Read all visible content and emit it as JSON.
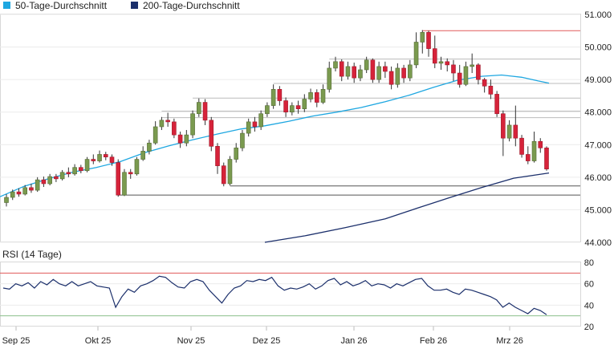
{
  "legend": [
    {
      "label": "50-Tage-Durchschnitt",
      "color": "#1ea7e1"
    },
    {
      "label": "200-Tage-Durchschnitt",
      "color": "#1b2f6b"
    }
  ],
  "colors": {
    "up": "#7a9a4f",
    "down": "#d6233a",
    "ma50": "#1ea7e1",
    "ma200": "#1b2f6b",
    "rsi": "#1b2f6b",
    "rsi_upper": "#e05a5a",
    "rsi_lower": "#8cc08c",
    "wick": "#333333"
  },
  "chart_data": [
    {
      "type": "candlestick",
      "ylim": [
        44.0,
        51.0
      ],
      "y_ticks": [
        "44.000",
        "45.000",
        "46.000",
        "47.000",
        "48.000",
        "49.000",
        "50.000",
        "51.000"
      ],
      "x_ticks": [
        "Sep 25",
        "Okt 25",
        "Nov 25",
        "Dez 25",
        "Jan 26",
        "Feb 26",
        "Mrz 26"
      ],
      "series": [
        {
          "name": "50-Tage-Durchschnitt",
          "values": [
            [
              0,
              45.4
            ],
            [
              30,
              45.72
            ],
            [
              60,
              45.95
            ],
            [
              90,
              46.15
            ],
            [
              120,
              46.3
            ],
            [
              150,
              46.48
            ],
            [
              180,
              46.75
            ],
            [
              210,
              46.96
            ],
            [
              240,
              47.15
            ],
            [
              270,
              47.32
            ],
            [
              300,
              47.48
            ],
            [
              330,
              47.58
            ],
            [
              360,
              47.72
            ],
            [
              390,
              47.88
            ],
            [
              420,
              48.0
            ],
            [
              450,
              48.14
            ],
            [
              480,
              48.32
            ],
            [
              510,
              48.52
            ],
            [
              540,
              48.76
            ],
            [
              570,
              48.98
            ],
            [
              600,
              49.1
            ],
            [
              625,
              49.14
            ],
            [
              650,
              49.07
            ],
            [
              670,
              48.96
            ],
            [
              684,
              48.89
            ]
          ]
        },
        {
          "name": "200-Tage-Durchschnitt",
          "values": [
            [
              330,
              44.0
            ],
            [
              380,
              44.2
            ],
            [
              430,
              44.45
            ],
            [
              480,
              44.72
            ],
            [
              520,
              45.05
            ],
            [
              560,
              45.37
            ],
            [
              600,
              45.68
            ],
            [
              640,
              45.97
            ],
            [
              684,
              46.13
            ]
          ]
        }
      ],
      "candles": [
        [
          45.22,
          45.38,
          45.1,
          45.48
        ],
        [
          45.38,
          45.55,
          45.3,
          45.62
        ],
        [
          45.55,
          45.48,
          45.4,
          45.66
        ],
        [
          45.48,
          45.68,
          45.44,
          45.76
        ],
        [
          45.68,
          45.6,
          45.52,
          45.8
        ],
        [
          45.6,
          45.92,
          45.55,
          46.0
        ],
        [
          45.92,
          45.8,
          45.7,
          46.02
        ],
        [
          45.8,
          46.02,
          45.75,
          46.1
        ],
        [
          46.02,
          45.95,
          45.85,
          46.1
        ],
        [
          45.95,
          46.15,
          45.9,
          46.22
        ],
        [
          46.15,
          46.1,
          46.0,
          46.3
        ],
        [
          46.1,
          46.3,
          46.05,
          46.4
        ],
        [
          46.3,
          46.2,
          46.12,
          46.38
        ],
        [
          46.2,
          46.55,
          46.15,
          46.62
        ],
        [
          46.55,
          46.5,
          46.4,
          46.7
        ],
        [
          46.5,
          46.7,
          46.45,
          46.82
        ],
        [
          46.7,
          46.62,
          46.52,
          46.78
        ],
        [
          46.62,
          46.45,
          46.35,
          46.7
        ],
        [
          46.45,
          45.45,
          45.4,
          46.55
        ],
        [
          45.45,
          46.15,
          45.42,
          46.25
        ],
        [
          46.15,
          46.1,
          45.95,
          46.25
        ],
        [
          46.1,
          46.55,
          46.05,
          46.62
        ],
        [
          46.55,
          46.8,
          46.5,
          46.95
        ],
        [
          46.8,
          47.05,
          46.7,
          47.15
        ],
        [
          47.05,
          47.55,
          47.0,
          47.72
        ],
        [
          47.55,
          47.75,
          47.45,
          47.85
        ],
        [
          47.75,
          47.7,
          47.55,
          47.98
        ],
        [
          47.7,
          47.3,
          47.2,
          47.8
        ],
        [
          47.3,
          47.05,
          46.9,
          47.4
        ],
        [
          47.05,
          47.3,
          46.95,
          47.45
        ],
        [
          47.3,
          47.95,
          47.2,
          48.05
        ],
        [
          47.95,
          48.3,
          47.85,
          48.42
        ],
        [
          48.3,
          47.75,
          47.6,
          48.4
        ],
        [
          47.75,
          46.95,
          46.8,
          47.85
        ],
        [
          46.95,
          46.35,
          46.1,
          47.05
        ],
        [
          46.35,
          45.8,
          45.72,
          46.45
        ],
        [
          45.8,
          46.55,
          45.75,
          46.65
        ],
        [
          46.55,
          46.9,
          46.45,
          47.05
        ],
        [
          46.9,
          47.35,
          46.8,
          47.45
        ],
        [
          47.35,
          47.7,
          47.25,
          47.8
        ],
        [
          47.7,
          47.55,
          47.4,
          47.85
        ],
        [
          47.55,
          47.95,
          47.45,
          48.05
        ],
        [
          47.95,
          48.2,
          47.85,
          48.3
        ],
        [
          48.2,
          48.7,
          48.1,
          48.85
        ],
        [
          48.7,
          48.35,
          48.2,
          48.8
        ],
        [
          48.35,
          48.0,
          47.85,
          48.45
        ],
        [
          48.0,
          48.2,
          47.9,
          48.3
        ],
        [
          48.2,
          48.1,
          47.95,
          48.35
        ],
        [
          48.1,
          48.4,
          48.0,
          48.55
        ],
        [
          48.4,
          48.6,
          48.3,
          48.72
        ],
        [
          48.6,
          48.3,
          48.15,
          48.7
        ],
        [
          48.3,
          48.7,
          48.25,
          48.85
        ],
        [
          48.7,
          49.35,
          48.6,
          49.55
        ],
        [
          49.35,
          49.55,
          49.25,
          49.7
        ],
        [
          49.55,
          49.1,
          48.95,
          49.62
        ],
        [
          49.1,
          49.4,
          49.0,
          49.55
        ],
        [
          49.4,
          49.05,
          48.9,
          49.52
        ],
        [
          49.05,
          49.3,
          48.95,
          49.45
        ],
        [
          49.3,
          49.6,
          49.2,
          49.7
        ],
        [
          49.6,
          49.0,
          48.9,
          49.65
        ],
        [
          49.0,
          49.4,
          48.9,
          49.55
        ],
        [
          49.4,
          49.25,
          49.05,
          49.55
        ],
        [
          49.25,
          48.85,
          48.7,
          49.4
        ],
        [
          48.85,
          49.35,
          48.75,
          49.5
        ],
        [
          49.35,
          49.05,
          48.9,
          49.45
        ],
        [
          49.05,
          49.45,
          48.95,
          49.6
        ],
        [
          49.45,
          50.15,
          49.35,
          50.45
        ],
        [
          50.15,
          50.45,
          49.8,
          50.52
        ],
        [
          50.45,
          49.95,
          49.7,
          50.5
        ],
        [
          49.95,
          49.5,
          49.35,
          50.35
        ],
        [
          49.5,
          49.55,
          49.3,
          49.7
        ],
        [
          49.55,
          49.45,
          49.25,
          49.65
        ],
        [
          49.45,
          49.2,
          48.95,
          49.6
        ],
        [
          49.2,
          48.85,
          48.75,
          49.45
        ],
        [
          48.85,
          49.4,
          48.8,
          49.55
        ],
        [
          49.4,
          49.45,
          49.2,
          49.8
        ],
        [
          49.45,
          49.0,
          48.85,
          49.5
        ],
        [
          49.0,
          48.8,
          48.6,
          49.05
        ],
        [
          48.8,
          48.55,
          48.4,
          49.0
        ],
        [
          48.55,
          47.95,
          47.85,
          48.65
        ],
        [
          47.95,
          47.2,
          46.65,
          48.05
        ],
        [
          47.2,
          47.6,
          47.1,
          47.75
        ],
        [
          47.6,
          47.2,
          46.95,
          48.2
        ],
        [
          47.2,
          46.7,
          46.6,
          47.3
        ],
        [
          46.7,
          46.5,
          46.4,
          46.95
        ],
        [
          46.5,
          47.1,
          46.45,
          47.4
        ],
        [
          47.1,
          46.9,
          46.75,
          47.2
        ],
        [
          46.9,
          46.25,
          46.2,
          46.95
        ]
      ],
      "reference_lines": [
        50.5,
        49.63,
        48.88,
        48.43,
        48.03,
        47.83,
        45.73,
        45.45
      ]
    },
    {
      "type": "line",
      "title": "RSI (14 Tage)",
      "ylim": [
        20,
        80
      ],
      "y_ticks": [
        "80",
        "60",
        "40",
        "20"
      ],
      "threshold_upper": 70,
      "threshold_lower": 30,
      "series": [
        {
          "values": [
            56,
            55,
            60,
            58,
            61,
            56,
            62,
            59,
            64,
            60,
            58,
            62,
            58,
            60,
            62,
            58,
            57,
            56,
            38,
            48,
            55,
            52,
            58,
            60,
            63,
            67,
            66,
            61,
            57,
            56,
            62,
            64,
            62,
            54,
            48,
            42,
            50,
            56,
            58,
            63,
            62,
            64,
            63,
            66,
            58,
            54,
            56,
            55,
            57,
            60,
            55,
            58,
            63,
            65,
            59,
            62,
            58,
            60,
            63,
            58,
            60,
            59,
            56,
            60,
            58,
            61,
            64,
            65,
            58,
            54,
            54,
            55,
            52,
            50,
            55,
            54,
            52,
            50,
            48,
            45,
            38,
            42,
            38,
            35,
            32,
            37,
            35,
            31
          ]
        }
      ]
    }
  ]
}
